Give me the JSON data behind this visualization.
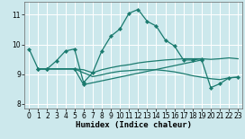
{
  "xlabel": "Humidex (Indice chaleur)",
  "background_color": "#cce8ec",
  "grid_color": "#ffffff",
  "line_color": "#1a7a6e",
  "xlim": [
    -0.5,
    23.5
  ],
  "ylim": [
    7.85,
    11.45
  ],
  "xticks": [
    0,
    1,
    2,
    3,
    4,
    5,
    6,
    7,
    8,
    9,
    10,
    11,
    12,
    13,
    14,
    15,
    16,
    17,
    18,
    19,
    20,
    21,
    22,
    23
  ],
  "yticks": [
    8,
    9,
    10,
    11
  ],
  "lines": [
    {
      "x": [
        0,
        1,
        2,
        3,
        4,
        5,
        6,
        7,
        8,
        9,
        10,
        11,
        12,
        13,
        14,
        15,
        16,
        17,
        18,
        19
      ],
      "y": [
        9.85,
        9.18,
        9.18,
        9.45,
        9.78,
        9.85,
        8.72,
        9.05,
        9.78,
        10.28,
        10.52,
        11.05,
        11.18,
        10.78,
        10.62,
        10.15,
        9.95,
        9.48,
        9.48,
        9.52
      ],
      "marker": "D",
      "markersize": 2.2,
      "lw": 0.9
    },
    {
      "x": [
        1,
        2,
        5,
        6,
        7,
        8,
        9,
        10,
        11,
        12,
        13,
        14,
        15,
        16,
        17,
        18,
        19,
        20,
        21,
        22,
        23
      ],
      "y": [
        9.18,
        9.18,
        9.18,
        9.15,
        9.05,
        9.15,
        9.22,
        9.28,
        9.32,
        9.38,
        9.42,
        9.45,
        9.48,
        9.5,
        9.52,
        9.52,
        9.52,
        9.5,
        9.52,
        9.55,
        9.52
      ],
      "marker": null,
      "markersize": 0,
      "lw": 0.9
    },
    {
      "x": [
        1,
        2,
        5,
        6,
        7,
        8,
        9,
        10,
        11,
        12,
        13,
        14,
        15,
        16,
        17,
        18,
        19,
        20,
        21,
        22,
        23
      ],
      "y": [
        9.18,
        9.18,
        9.18,
        9.05,
        8.92,
        8.98,
        9.05,
        9.1,
        9.12,
        9.15,
        9.15,
        9.15,
        9.12,
        9.08,
        9.02,
        8.95,
        8.9,
        8.85,
        8.82,
        8.88,
        8.9
      ],
      "marker": null,
      "markersize": 0,
      "lw": 0.9
    },
    {
      "x": [
        1,
        2,
        5,
        6,
        19,
        20,
        21,
        22,
        23
      ],
      "y": [
        9.18,
        9.18,
        9.18,
        8.65,
        9.48,
        8.55,
        8.68,
        8.88,
        8.9
      ],
      "marker": "D",
      "markersize": 2.2,
      "lw": 0.9
    }
  ]
}
